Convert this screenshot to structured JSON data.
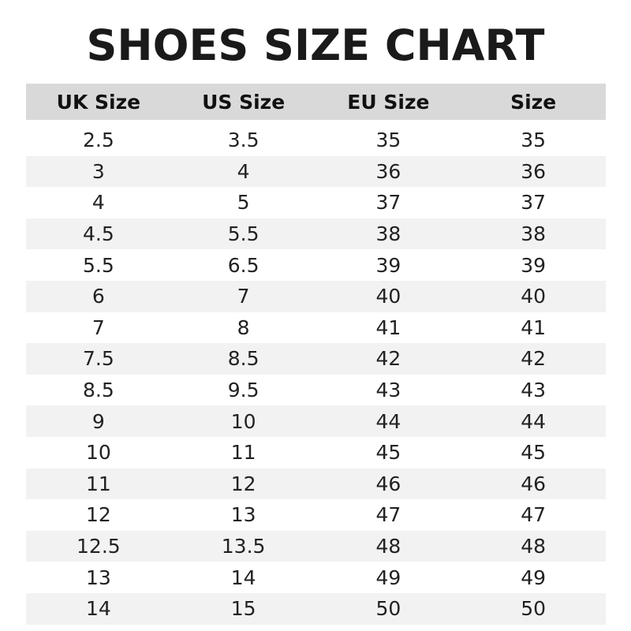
{
  "title": "SHOES SIZE CHART",
  "table": {
    "headers": [
      "UK Size",
      "US Size",
      "EU Size",
      "Size"
    ],
    "rows": [
      [
        "2.5",
        "3.5",
        "35",
        "35"
      ],
      [
        "3",
        "4",
        "36",
        "36"
      ],
      [
        "4",
        "5",
        "37",
        "37"
      ],
      [
        "4.5",
        "5.5",
        "38",
        "38"
      ],
      [
        "5.5",
        "6.5",
        "39",
        "39"
      ],
      [
        "6",
        "7",
        "40",
        "40"
      ],
      [
        "7",
        "8",
        "41",
        "41"
      ],
      [
        "7.5",
        "8.5",
        "42",
        "42"
      ],
      [
        "8.5",
        "9.5",
        "43",
        "43"
      ],
      [
        "9",
        "10",
        "44",
        "44"
      ],
      [
        "10",
        "11",
        "45",
        "45"
      ],
      [
        "11",
        "12",
        "46",
        "46"
      ],
      [
        "12",
        "13",
        "47",
        "47"
      ],
      [
        "12.5",
        "13.5",
        "48",
        "48"
      ],
      [
        "13",
        "14",
        "49",
        "49"
      ],
      [
        "14",
        "15",
        "50",
        "50"
      ]
    ]
  },
  "colors": {
    "header_bg": "#d9d9d9",
    "stripe_bg": "#f2f2f2"
  }
}
